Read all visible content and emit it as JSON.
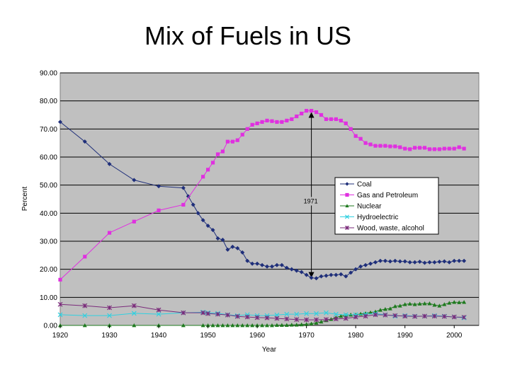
{
  "slide": {
    "title": "Mix of Fuels in US"
  },
  "chart_data": {
    "type": "line",
    "title": "",
    "xlabel": "Year",
    "ylabel": "Percent",
    "xlim": [
      1920,
      2005
    ],
    "ylim": [
      0,
      90
    ],
    "x_ticks": [
      "1920",
      "1930",
      "1940",
      "1950",
      "1960",
      "1970",
      "1980",
      "1990",
      "2000"
    ],
    "y_ticks": [
      "0.00",
      "10.00",
      "20.00",
      "30.00",
      "40.00",
      "50.00",
      "60.00",
      "70.00",
      "80.00",
      "90.00"
    ],
    "plot_background": "#c0c0c0",
    "grid": "horizontal",
    "legend_position": "right",
    "annotation": {
      "label": "1971",
      "x": 1971,
      "y_from": 76,
      "y_to": 17
    },
    "series": [
      {
        "name": "Coal",
        "color": "#1f2f7a",
        "marker": "diamond",
        "x": [
          1920,
          1925,
          1930,
          1935,
          1940,
          1945,
          1946,
          1947,
          1948,
          1949,
          1950,
          1951,
          1952,
          1953,
          1954,
          1955,
          1956,
          1957,
          1958,
          1959,
          1960,
          1961,
          1962,
          1963,
          1964,
          1965,
          1966,
          1967,
          1968,
          1969,
          1970,
          1971,
          1972,
          1973,
          1974,
          1975,
          1976,
          1977,
          1978,
          1979,
          1980,
          1981,
          1982,
          1983,
          1984,
          1985,
          1986,
          1987,
          1988,
          1989,
          1990,
          1991,
          1992,
          1993,
          1994,
          1995,
          1996,
          1997,
          1998,
          1999,
          2000,
          2001,
          2002
        ],
        "values": [
          72.5,
          65.5,
          57.5,
          51.8,
          49.6,
          49.0,
          46.0,
          43.0,
          40.0,
          37.5,
          35.5,
          34.0,
          31.0,
          30.5,
          27.0,
          28.0,
          27.5,
          26.0,
          23.0,
          22.0,
          22.0,
          21.5,
          21.0,
          21.0,
          21.5,
          21.5,
          20.5,
          20.0,
          19.5,
          19.0,
          18.0,
          17.0,
          16.8,
          17.5,
          17.7,
          18.0,
          18.0,
          18.2,
          17.5,
          18.8,
          20.0,
          21.0,
          21.5,
          22.0,
          22.5,
          23.0,
          23.0,
          22.8,
          23.0,
          22.8,
          22.8,
          22.5,
          22.5,
          22.7,
          22.3,
          22.5,
          22.5,
          22.7,
          22.8,
          22.5,
          23.0,
          23.0,
          23.0
        ]
      },
      {
        "name": "Gas and Petroleum",
        "color": "#e030e0",
        "marker": "square",
        "x": [
          1920,
          1925,
          1930,
          1935,
          1940,
          1945,
          1949,
          1950,
          1951,
          1952,
          1953,
          1954,
          1955,
          1956,
          1957,
          1958,
          1959,
          1960,
          1961,
          1962,
          1963,
          1964,
          1965,
          1966,
          1967,
          1968,
          1969,
          1970,
          1971,
          1972,
          1973,
          1974,
          1975,
          1976,
          1977,
          1978,
          1979,
          1980,
          1981,
          1982,
          1983,
          1984,
          1985,
          1986,
          1987,
          1988,
          1989,
          1990,
          1991,
          1992,
          1993,
          1994,
          1995,
          1996,
          1997,
          1998,
          1999,
          2000,
          2001,
          2002
        ],
        "values": [
          16.3,
          24.5,
          33.0,
          37.0,
          41.0,
          43.0,
          53.0,
          55.5,
          58.0,
          61.0,
          62.0,
          65.5,
          65.5,
          66.0,
          68.0,
          70.0,
          71.5,
          72.0,
          72.5,
          73.0,
          72.8,
          72.5,
          72.5,
          73.0,
          73.5,
          74.5,
          75.5,
          76.5,
          76.5,
          76.0,
          75.0,
          73.5,
          73.5,
          73.5,
          73.0,
          72.0,
          70.0,
          67.5,
          66.5,
          65.0,
          64.5,
          64.0,
          64.0,
          64.0,
          63.8,
          63.8,
          63.5,
          63.0,
          62.8,
          63.3,
          63.3,
          63.3,
          62.8,
          62.8,
          62.8,
          63.0,
          63.0,
          63.0,
          63.5,
          63.0
        ]
      },
      {
        "name": "Nuclear",
        "color": "#1e7a1e",
        "marker": "triangle",
        "x": [
          1920,
          1925,
          1930,
          1935,
          1940,
          1945,
          1949,
          1950,
          1951,
          1952,
          1953,
          1954,
          1955,
          1956,
          1957,
          1958,
          1959,
          1960,
          1961,
          1962,
          1963,
          1964,
          1965,
          1966,
          1967,
          1968,
          1969,
          1970,
          1971,
          1972,
          1973,
          1974,
          1975,
          1976,
          1977,
          1978,
          1979,
          1980,
          1981,
          1982,
          1983,
          1984,
          1985,
          1986,
          1987,
          1988,
          1989,
          1990,
          1991,
          1992,
          1993,
          1994,
          1995,
          1996,
          1997,
          1998,
          1999,
          2000,
          2001,
          2002
        ],
        "values": [
          0,
          0,
          0,
          0,
          0,
          0,
          0,
          0,
          0,
          0,
          0,
          0,
          0,
          0,
          0,
          0,
          0,
          0,
          0,
          0,
          0,
          0.1,
          0.1,
          0.1,
          0.2,
          0.2,
          0.3,
          0.4,
          0.6,
          0.9,
          1.3,
          1.8,
          2.2,
          2.8,
          3.3,
          3.6,
          3.8,
          3.8,
          4.1,
          4.3,
          4.6,
          4.9,
          5.5,
          5.8,
          6.0,
          6.8,
          7.0,
          7.5,
          7.7,
          7.5,
          7.7,
          7.8,
          7.8,
          7.3,
          7.0,
          7.5,
          8.0,
          8.3,
          8.2,
          8.3
        ]
      },
      {
        "name": "Hydroelectric",
        "color": "#30d0e0",
        "marker": "x",
        "x": [
          1920,
          1925,
          1930,
          1935,
          1940,
          1945,
          1949,
          1950,
          1952,
          1954,
          1956,
          1958,
          1960,
          1962,
          1964,
          1966,
          1968,
          1970,
          1972,
          1974,
          1976,
          1978,
          1980,
          1982,
          1984,
          1986,
          1988,
          1990,
          1992,
          1994,
          1996,
          1998,
          2000,
          2002
        ],
        "values": [
          3.8,
          3.5,
          3.5,
          4.3,
          4.0,
          4.5,
          4.7,
          4.5,
          4.3,
          3.8,
          3.5,
          3.8,
          3.5,
          3.5,
          3.7,
          4.0,
          4.0,
          4.2,
          4.2,
          4.5,
          4.0,
          3.8,
          3.8,
          4.0,
          4.2,
          3.8,
          3.3,
          3.5,
          3.3,
          3.3,
          3.5,
          3.3,
          3.0,
          2.7
        ]
      },
      {
        "name": "Wood, waste, alcohol",
        "color": "#7a2a7a",
        "marker": "star",
        "x": [
          1920,
          1925,
          1930,
          1935,
          1940,
          1945,
          1949,
          1950,
          1952,
          1954,
          1956,
          1958,
          1960,
          1962,
          1964,
          1966,
          1968,
          1970,
          1972,
          1974,
          1976,
          1978,
          1980,
          1982,
          1984,
          1986,
          1988,
          1990,
          1992,
          1994,
          1996,
          1998,
          2000,
          2002
        ],
        "values": [
          7.5,
          7.0,
          6.3,
          7.0,
          5.5,
          4.5,
          4.5,
          4.2,
          4.0,
          3.7,
          3.2,
          3.0,
          2.8,
          2.7,
          2.5,
          2.3,
          2.1,
          2.0,
          2.0,
          2.1,
          2.3,
          2.5,
          3.0,
          3.3,
          3.8,
          3.7,
          3.5,
          3.3,
          3.2,
          3.3,
          3.3,
          3.2,
          3.0,
          2.9
        ]
      }
    ]
  }
}
